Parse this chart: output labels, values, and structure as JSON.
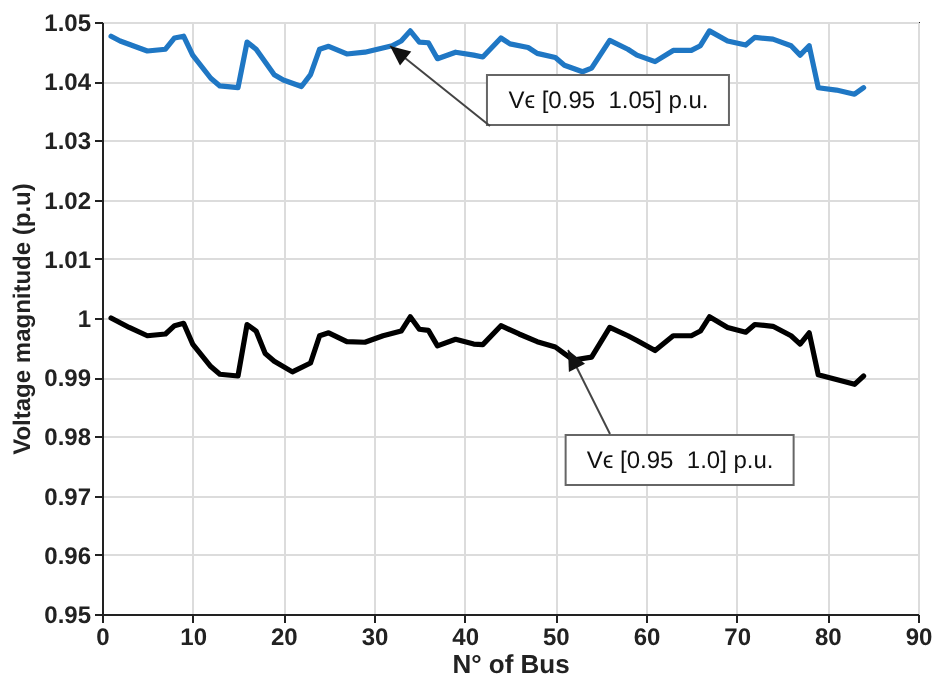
{
  "chart_data": {
    "type": "line",
    "xlabel": "N° of Bus",
    "ylabel": "Voltage magnitude (p.u)",
    "xlim": [
      0,
      90
    ],
    "xticks": [
      0,
      10,
      20,
      30,
      40,
      50,
      60,
      70,
      80,
      90
    ],
    "ylim": [
      0.95,
      1.05
    ],
    "yticks": [
      0.95,
      0.96,
      0.97,
      0.98,
      0.99,
      1,
      1.01,
      1.02,
      1.03,
      1.04,
      1.05
    ],
    "grid": true,
    "marker": "none",
    "line_style": "solid",
    "series": [
      {
        "color": "#1f77c4",
        "x": [
          1,
          2,
          5,
          7,
          8,
          9,
          10,
          12,
          13,
          15,
          16,
          17,
          19,
          20,
          22,
          23,
          24,
          25,
          27,
          29,
          32,
          33,
          34,
          35,
          36,
          37,
          39,
          41,
          42,
          44,
          45,
          47,
          48,
          50,
          51,
          53,
          54,
          56,
          58,
          59,
          61,
          63,
          65,
          66,
          67,
          69,
          71,
          72,
          74,
          76,
          77,
          78,
          79,
          81,
          83,
          84
        ],
        "values": [
          1.0476,
          1.0468,
          1.0451,
          1.0454,
          1.0473,
          1.0476,
          1.0444,
          1.0405,
          1.0392,
          1.0389,
          1.0466,
          1.0454,
          1.0411,
          1.0402,
          1.0391,
          1.0411,
          1.0454,
          1.0459,
          1.0446,
          1.0449,
          1.046,
          1.0468,
          1.0485,
          1.0466,
          1.0465,
          1.0438,
          1.0449,
          1.0444,
          1.0441,
          1.0473,
          1.0463,
          1.0457,
          1.0447,
          1.044,
          1.0427,
          1.0416,
          1.0422,
          1.0469,
          1.0454,
          1.0444,
          1.0433,
          1.0452,
          1.0452,
          1.046,
          1.0485,
          1.0468,
          1.0461,
          1.0474,
          1.0471,
          1.046,
          1.0444,
          1.046,
          1.0389,
          1.0385,
          1.0378,
          1.0389
        ]
      },
      {
        "color": "#000000",
        "x": [
          1,
          3,
          5,
          7,
          8,
          9,
          10,
          12,
          13,
          15,
          16,
          17,
          18,
          19,
          21,
          23,
          24,
          25,
          27,
          29,
          31,
          33,
          34,
          35,
          36,
          37,
          39,
          41,
          42,
          44,
          46,
          48,
          50,
          51,
          52,
          54,
          56,
          58,
          59,
          61,
          63,
          65,
          66,
          67,
          69,
          71,
          72,
          74,
          76,
          77,
          78,
          79,
          81,
          83,
          84
        ],
        "values": [
          1.0,
          0.9984,
          0.997,
          0.9973,
          0.9987,
          0.9991,
          0.9956,
          0.9918,
          0.9905,
          0.9902,
          0.9989,
          0.9978,
          0.994,
          0.9927,
          0.9909,
          0.9924,
          0.997,
          0.9975,
          0.996,
          0.9959,
          0.997,
          0.9978,
          1.0002,
          0.9981,
          0.9979,
          0.9953,
          0.9964,
          0.9956,
          0.9955,
          0.9987,
          0.9973,
          0.996,
          0.9951,
          0.994,
          0.9929,
          0.9934,
          0.9984,
          0.997,
          0.9962,
          0.9945,
          0.997,
          0.997,
          0.9978,
          1.0002,
          0.9984,
          0.9976,
          0.9989,
          0.9986,
          0.997,
          0.9956,
          0.9975,
          0.9904,
          0.9896,
          0.9888,
          0.9902
        ]
      }
    ],
    "annotations": [
      {
        "text": "Vϵ [0.95  1.05] p.u.",
        "x": 32.7,
        "y": 1.0444
      },
      {
        "text": "Vϵ [0.95  1.0] p.u.",
        "x": 52.3,
        "y": 0.9928
      }
    ]
  }
}
